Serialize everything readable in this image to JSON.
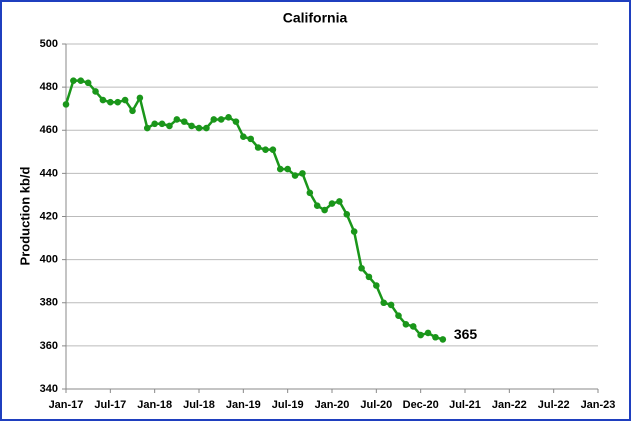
{
  "chart_data": {
    "type": "line",
    "title": "California",
    "y_label": "Production kb/d",
    "categories": [
      "Jan-17",
      null,
      null,
      null,
      null,
      null,
      "Jul-17",
      null,
      null,
      null,
      null,
      null,
      "Jan-18",
      null,
      null,
      null,
      null,
      null,
      "Jul-18",
      null,
      null,
      null,
      null,
      null,
      "Jan-19",
      null,
      null,
      null,
      null,
      null,
      "Jul-19",
      null,
      null,
      null,
      null,
      null,
      "Jan-20",
      null,
      null,
      null,
      null,
      null,
      "Jul-20",
      null,
      null,
      null,
      null,
      null,
      "Dec-20",
      null,
      null,
      null,
      null,
      null,
      "Jul-21",
      null,
      null,
      null,
      null,
      null,
      "Jan-22",
      null,
      null,
      null,
      null,
      null,
      "Jul-22",
      null,
      null,
      null,
      null,
      null,
      "Jan-23"
    ],
    "series": [
      {
        "name": "California",
        "color": "#1a961a",
        "values": [
          472,
          483,
          483,
          482,
          478,
          474,
          473,
          473,
          474,
          469,
          475,
          461,
          463,
          463,
          462,
          465,
          464,
          462,
          461,
          461,
          465,
          465,
          466,
          464,
          457,
          456,
          452,
          451,
          451,
          442,
          442,
          439,
          440,
          431,
          425,
          423,
          426,
          427,
          421,
          413,
          396,
          392,
          388,
          380,
          379,
          374,
          370,
          369,
          365,
          366,
          364,
          363,
          null,
          null,
          null,
          null,
          null,
          null,
          null,
          null,
          null,
          null,
          null,
          null,
          null,
          null,
          null,
          null,
          null,
          null,
          null,
          null,
          null
        ]
      }
    ],
    "ylim": [
      340,
      500
    ],
    "yticks": [
      340,
      360,
      380,
      400,
      420,
      440,
      460,
      480,
      500
    ],
    "grid": true,
    "annotation": "365"
  }
}
